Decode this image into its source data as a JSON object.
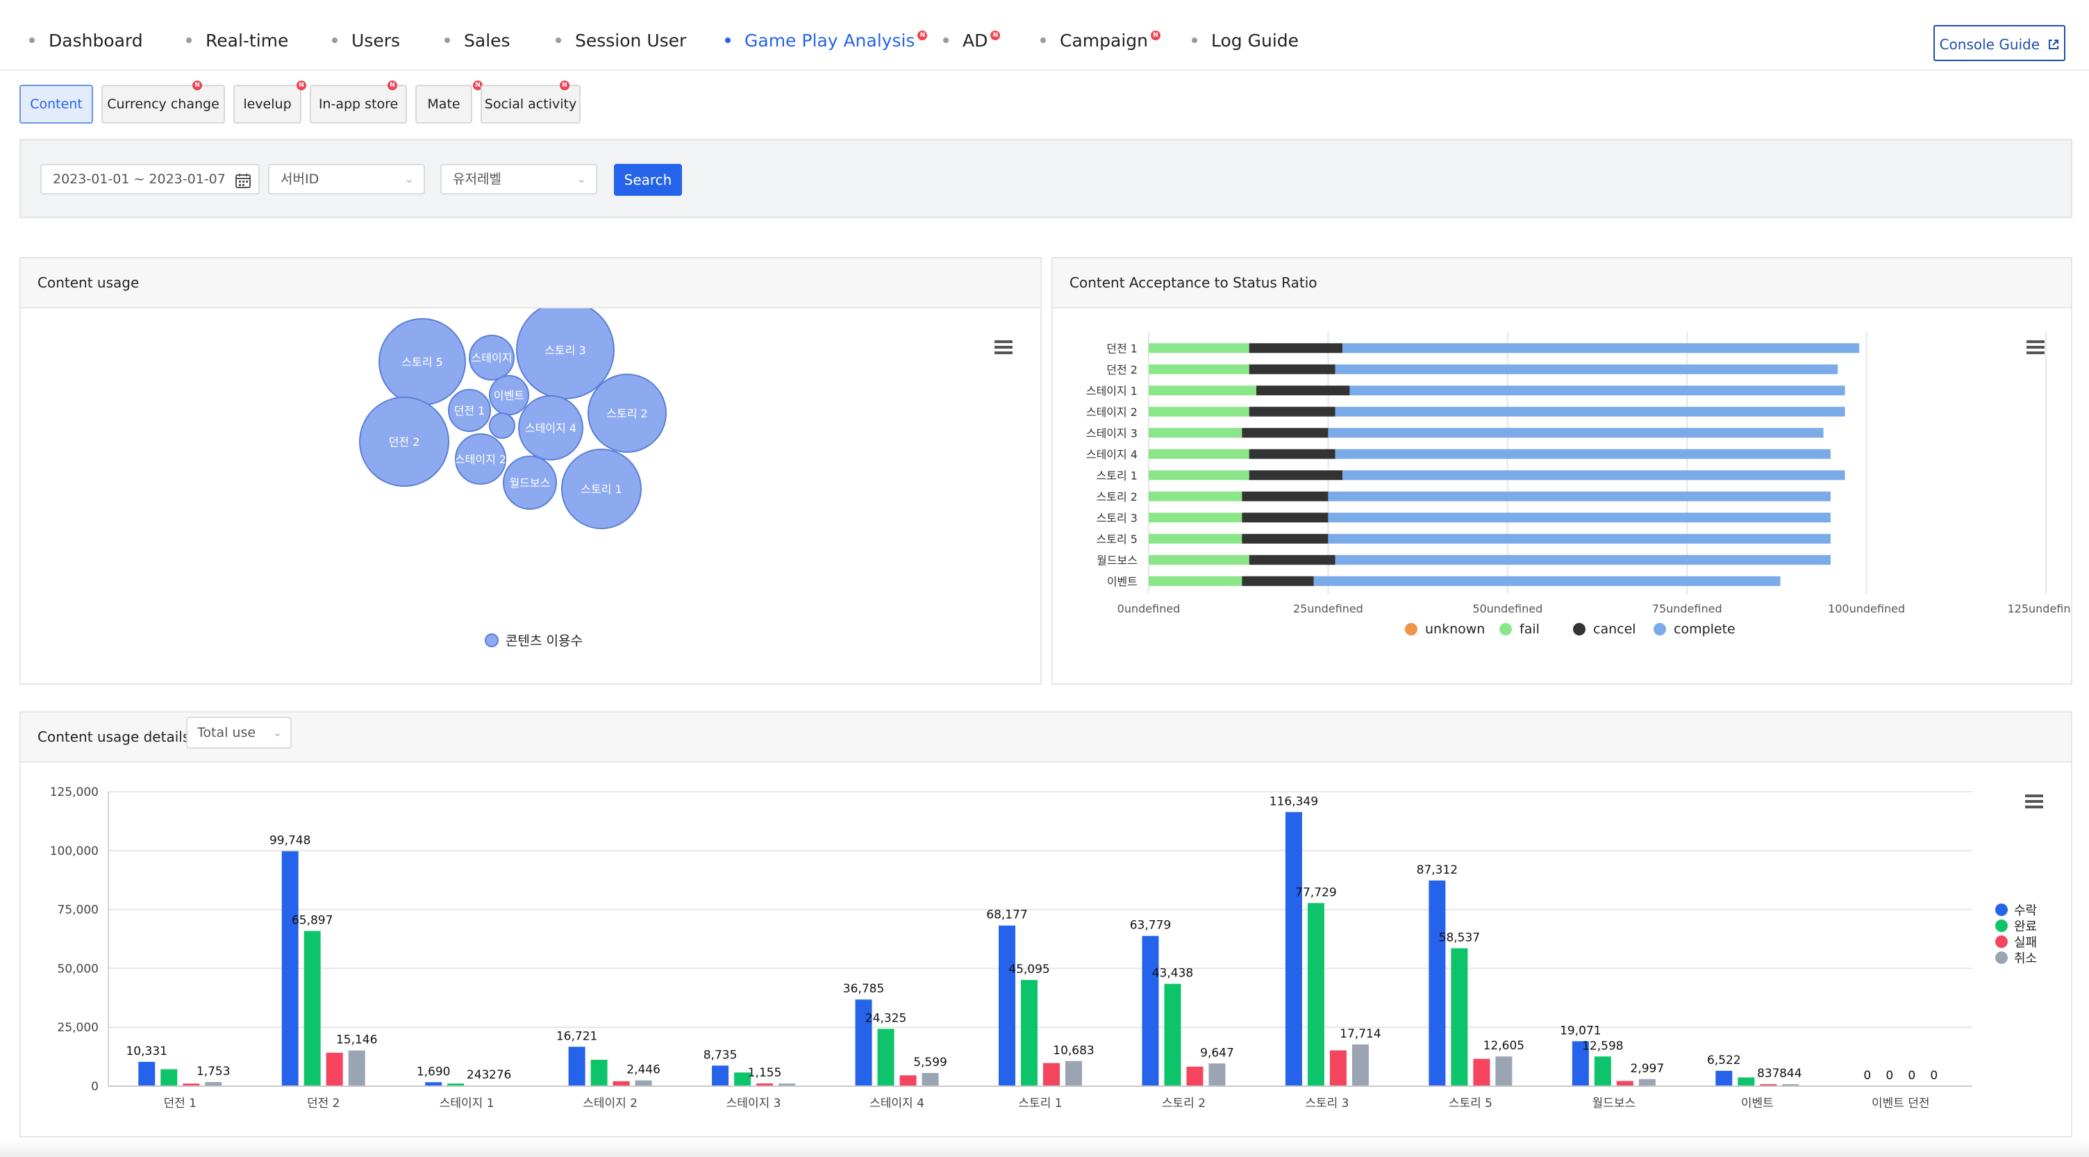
{
  "nav": {
    "items": [
      {
        "label": "Dashboard",
        "badge": false,
        "active": false
      },
      {
        "label": "Real-time",
        "badge": false,
        "active": false
      },
      {
        "label": "Users",
        "badge": false,
        "active": false
      },
      {
        "label": "Sales",
        "badge": false,
        "active": false
      },
      {
        "label": "Session User",
        "badge": false,
        "active": false
      },
      {
        "label": "Game Play Analysis",
        "badge": true,
        "active": true
      },
      {
        "label": "AD",
        "badge": true,
        "active": false
      },
      {
        "label": "Campaign",
        "badge": true,
        "active": false
      },
      {
        "label": "Log Guide",
        "badge": false,
        "active": false
      }
    ],
    "badge_text": "N",
    "console_guide": "Console Guide"
  },
  "subtabs": [
    {
      "label": "Content",
      "badge": false,
      "active": true
    },
    {
      "label": "Currency change",
      "badge": true,
      "active": false
    },
    {
      "label": "levelup",
      "badge": true,
      "active": false
    },
    {
      "label": "In-app store",
      "badge": true,
      "active": false
    },
    {
      "label": "Mate",
      "badge": true,
      "active": false
    },
    {
      "label": "Social activity",
      "badge": true,
      "active": false
    }
  ],
  "filters": {
    "date_range": "2023-01-01 ~ 2023-01-07",
    "server_id_placeholder": "서버ID",
    "user_level_placeholder": "유저레벨",
    "search_label": "Search"
  },
  "content_usage": {
    "title": "Content usage",
    "legend": "콘텐츠 이용수",
    "bubbles": [
      "스토리 5",
      "스테이지",
      "스토리 3",
      "이벤트",
      "던전 1",
      "스토리 2",
      "던전 2",
      "스테이지 4",
      "스테이지 2",
      "월드보스",
      "스토리 1"
    ]
  },
  "acceptance": {
    "title": "Content Acceptance to Status Ratio",
    "categories": [
      "던전 1",
      "던전 2",
      "스테이지 1",
      "스테이지 2",
      "스테이지 3",
      "스테이지 4",
      "스토리 1",
      "스토리 2",
      "스토리 3",
      "스토리 5",
      "월드보스",
      "이벤트"
    ],
    "x_ticks": [
      "0undefined",
      "25undefined",
      "50undefined",
      "75undefined",
      "100undefined",
      "125undefined"
    ],
    "legend": [
      {
        "name": "unknown",
        "color": "#f0954a"
      },
      {
        "name": "fail",
        "color": "#8be68a"
      },
      {
        "name": "cancel",
        "color": "#333333"
      },
      {
        "name": "complete",
        "color": "#7aaae8"
      }
    ]
  },
  "details": {
    "title": "Content usage details",
    "select_value": "Total use",
    "legend": [
      {
        "name": "수락",
        "color": "#2563eb"
      },
      {
        "name": "완료",
        "color": "#0dc46b"
      },
      {
        "name": "실패",
        "color": "#f4445e"
      },
      {
        "name": "취소",
        "color": "#9aa4b2"
      }
    ]
  },
  "chart_data": [
    {
      "type": "scatter",
      "title": "Content usage",
      "series": [
        {
          "name": "콘텐츠 이용수",
          "labels": [
            "스토리 5",
            "스테이지",
            "스토리 3",
            "이벤트",
            "던전 1",
            "스토리 2",
            "던전 2",
            "스테이지 4",
            "스테이지 2",
            "월드보스",
            "스토리 1"
          ]
        }
      ]
    },
    {
      "type": "bar",
      "orientation": "horizontal",
      "stacked": true,
      "title": "Content Acceptance to Status Ratio",
      "categories": [
        "던전 1",
        "던전 2",
        "스테이지 1",
        "스테이지 2",
        "스테이지 3",
        "스테이지 4",
        "스토리 1",
        "스토리 2",
        "스토리 3",
        "스토리 5",
        "월드보스",
        "이벤트"
      ],
      "xlim": [
        0,
        125
      ],
      "series": [
        {
          "name": "unknown",
          "values": [
            0,
            0,
            0,
            0,
            0,
            0,
            0,
            0,
            0,
            0,
            0,
            0
          ]
        },
        {
          "name": "fail",
          "values": [
            14,
            14,
            15,
            14,
            13,
            14,
            14,
            13,
            13,
            13,
            14,
            13
          ]
        },
        {
          "name": "cancel",
          "values": [
            13,
            12,
            13,
            12,
            12,
            12,
            13,
            12,
            12,
            12,
            12,
            10
          ]
        },
        {
          "name": "complete",
          "values": [
            72,
            70,
            69,
            71,
            69,
            69,
            70,
            70,
            70,
            70,
            69,
            65
          ]
        }
      ],
      "legend_position": "bottom"
    },
    {
      "type": "bar",
      "title": "Content usage details",
      "categories": [
        "던전 1",
        "던전 2",
        "스테이지 1",
        "스테이지 2",
        "스테이지 3",
        "스테이지 4",
        "스토리 1",
        "스토리 2",
        "스토리 3",
        "스토리 5",
        "월드보스",
        "이벤트",
        "이벤트 던전"
      ],
      "ylim": [
        0,
        125000
      ],
      "y_ticks": [
        "0",
        "25,000",
        "50,000",
        "75,000",
        "100,000",
        "125,000"
      ],
      "series": [
        {
          "name": "수락",
          "values": [
            10331,
            99748,
            1690,
            16721,
            8735,
            36785,
            68177,
            63779,
            116349,
            87312,
            19071,
            6522,
            0
          ]
        },
        {
          "name": "완료",
          "values": [
            7200,
            65897,
            1100,
            11200,
            5800,
            24325,
            45095,
            43438,
            77729,
            58537,
            12598,
            3700,
            0
          ]
        },
        {
          "name": "실패",
          "values": [
            1100,
            14200,
            243,
            2100,
            1155,
            4600,
            9800,
            8300,
            15200,
            11600,
            2200,
            837,
            0
          ]
        },
        {
          "name": "취소",
          "values": [
            1753,
            15146,
            276,
            2446,
            1100,
            5599,
            10683,
            9647,
            17714,
            12605,
            2997,
            844,
            0
          ]
        }
      ],
      "data_labels": [
        [
          "10,331",
          "",
          "",
          "1,753"
        ],
        [
          "99,748",
          "65,897",
          "",
          "15,146"
        ],
        [
          "1,690",
          "",
          "243",
          "276"
        ],
        [
          "16,721",
          "",
          "",
          "2,446"
        ],
        [
          "8,735",
          "",
          "1,155",
          ""
        ],
        [
          "36,785",
          "24,325",
          "",
          "5,599"
        ],
        [
          "68,177",
          "45,095",
          "",
          "10,683"
        ],
        [
          "63,779",
          "43,438",
          "",
          "9,647"
        ],
        [
          "116,349",
          "77,729",
          "",
          "17,714"
        ],
        [
          "87,312",
          "58,537",
          "",
          "12,605"
        ],
        [
          "19,071",
          "12,598",
          "",
          "2,997"
        ],
        [
          "6,522",
          "",
          "837",
          "844"
        ],
        [
          "0",
          "0",
          "0",
          "0"
        ]
      ],
      "legend_position": "right"
    }
  ]
}
